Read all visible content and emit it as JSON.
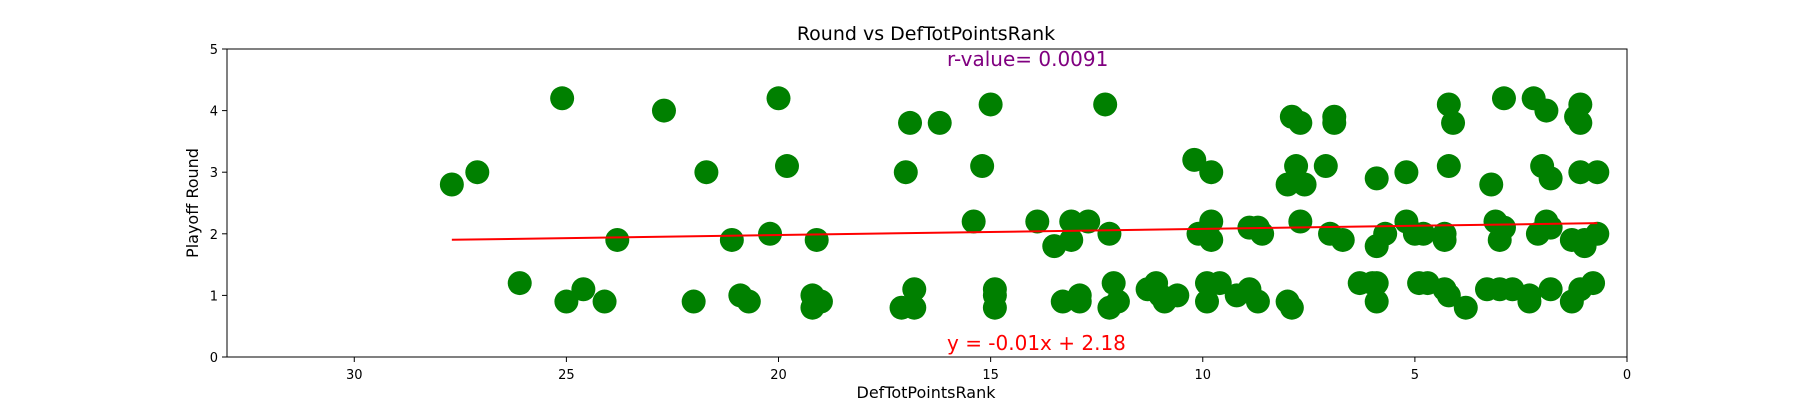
{
  "chart_data": {
    "type": "scatter",
    "title": "Round vs DefTotPointsRank",
    "xlabel": "DefTotPointsRank",
    "ylabel": "Playoff Round",
    "xlim": [
      33,
      0
    ],
    "ylim": [
      0,
      5
    ],
    "x_inverted": true,
    "xticks": [
      30,
      25,
      20,
      15,
      10,
      5,
      0
    ],
    "yticks": [
      0,
      1,
      2,
      3,
      4,
      5
    ],
    "grid": false,
    "colors": {
      "points": "#008000",
      "fit_line": "#ff0000",
      "r_value": "#800080",
      "equation": "#ff0000"
    },
    "annotations": {
      "r_value": "r-value= 0.0091",
      "equation": "y = -0.01x + 2.18"
    },
    "fit_line": {
      "slope": -0.01,
      "intercept": 2.18,
      "x_range": [
        27.7,
        0.7
      ]
    },
    "points": [
      {
        "x": 27.7,
        "y": 2.8
      },
      {
        "x": 27.1,
        "y": 3.0
      },
      {
        "x": 26.1,
        "y": 1.2
      },
      {
        "x": 25.1,
        "y": 4.2
      },
      {
        "x": 25.0,
        "y": 0.9
      },
      {
        "x": 24.6,
        "y": 1.1
      },
      {
        "x": 24.1,
        "y": 0.9
      },
      {
        "x": 23.8,
        "y": 1.9
      },
      {
        "x": 22.7,
        "y": 4.0
      },
      {
        "x": 22.0,
        "y": 0.9
      },
      {
        "x": 21.7,
        "y": 3.0
      },
      {
        "x": 21.1,
        "y": 1.9
      },
      {
        "x": 20.9,
        "y": 1.0
      },
      {
        "x": 20.7,
        "y": 0.9
      },
      {
        "x": 20.2,
        "y": 2.0
      },
      {
        "x": 20.0,
        "y": 4.2
      },
      {
        "x": 19.8,
        "y": 3.1
      },
      {
        "x": 19.2,
        "y": 1.0
      },
      {
        "x": 19.2,
        "y": 0.8
      },
      {
        "x": 19.1,
        "y": 1.9
      },
      {
        "x": 19.0,
        "y": 0.9
      },
      {
        "x": 17.1,
        "y": 0.8
      },
      {
        "x": 17.0,
        "y": 3.0
      },
      {
        "x": 16.9,
        "y": 3.8
      },
      {
        "x": 16.8,
        "y": 1.1
      },
      {
        "x": 16.8,
        "y": 0.8
      },
      {
        "x": 16.2,
        "y": 3.8
      },
      {
        "x": 15.2,
        "y": 3.1
      },
      {
        "x": 15.0,
        "y": 4.1
      },
      {
        "x": 15.4,
        "y": 2.2
      },
      {
        "x": 14.9,
        "y": 1.1
      },
      {
        "x": 14.9,
        "y": 0.8
      },
      {
        "x": 14.9,
        "y": 1.0
      },
      {
        "x": 13.9,
        "y": 2.2
      },
      {
        "x": 13.5,
        "y": 1.8
      },
      {
        "x": 13.3,
        "y": 0.9
      },
      {
        "x": 12.9,
        "y": 1.0
      },
      {
        "x": 13.1,
        "y": 2.2
      },
      {
        "x": 13.1,
        "y": 1.9
      },
      {
        "x": 12.9,
        "y": 0.9
      },
      {
        "x": 12.7,
        "y": 2.2
      },
      {
        "x": 12.3,
        "y": 4.1
      },
      {
        "x": 12.2,
        "y": 2.0
      },
      {
        "x": 12.2,
        "y": 0.8
      },
      {
        "x": 12.1,
        "y": 1.2
      },
      {
        "x": 12.0,
        "y": 0.9
      },
      {
        "x": 11.3,
        "y": 1.1
      },
      {
        "x": 11.1,
        "y": 1.2
      },
      {
        "x": 11.0,
        "y": 1.0
      },
      {
        "x": 10.9,
        "y": 0.9
      },
      {
        "x": 10.6,
        "y": 1.0
      },
      {
        "x": 10.2,
        "y": 3.2
      },
      {
        "x": 10.1,
        "y": 2.0
      },
      {
        "x": 9.9,
        "y": 0.9
      },
      {
        "x": 9.9,
        "y": 1.2
      },
      {
        "x": 9.8,
        "y": 3.0
      },
      {
        "x": 9.8,
        "y": 2.2
      },
      {
        "x": 9.8,
        "y": 1.9
      },
      {
        "x": 9.6,
        "y": 1.2
      },
      {
        "x": 9.2,
        "y": 1.0
      },
      {
        "x": 8.9,
        "y": 2.1
      },
      {
        "x": 8.9,
        "y": 1.1
      },
      {
        "x": 8.7,
        "y": 2.1
      },
      {
        "x": 8.7,
        "y": 0.9
      },
      {
        "x": 8.6,
        "y": 2.0
      },
      {
        "x": 8.0,
        "y": 0.9
      },
      {
        "x": 8.0,
        "y": 2.8
      },
      {
        "x": 7.9,
        "y": 3.9
      },
      {
        "x": 7.9,
        "y": 0.8
      },
      {
        "x": 7.8,
        "y": 3.1
      },
      {
        "x": 7.7,
        "y": 3.8
      },
      {
        "x": 7.7,
        "y": 2.2
      },
      {
        "x": 7.6,
        "y": 2.8
      },
      {
        "x": 7.1,
        "y": 3.1
      },
      {
        "x": 7.0,
        "y": 2.0
      },
      {
        "x": 6.9,
        "y": 3.9
      },
      {
        "x": 6.9,
        "y": 3.8
      },
      {
        "x": 6.7,
        "y": 1.9
      },
      {
        "x": 6.3,
        "y": 1.2
      },
      {
        "x": 6.0,
        "y": 1.2
      },
      {
        "x": 5.9,
        "y": 2.9
      },
      {
        "x": 5.9,
        "y": 1.8
      },
      {
        "x": 5.9,
        "y": 1.2
      },
      {
        "x": 5.9,
        "y": 0.9
      },
      {
        "x": 5.7,
        "y": 2.0
      },
      {
        "x": 5.2,
        "y": 3.0
      },
      {
        "x": 5.2,
        "y": 2.2
      },
      {
        "x": 5.0,
        "y": 2.0
      },
      {
        "x": 4.9,
        "y": 1.2
      },
      {
        "x": 4.8,
        "y": 2.0
      },
      {
        "x": 4.7,
        "y": 1.2
      },
      {
        "x": 4.3,
        "y": 2.0
      },
      {
        "x": 4.3,
        "y": 1.9
      },
      {
        "x": 4.3,
        "y": 1.1
      },
      {
        "x": 4.2,
        "y": 4.1
      },
      {
        "x": 4.2,
        "y": 3.1
      },
      {
        "x": 4.2,
        "y": 1.0
      },
      {
        "x": 4.1,
        "y": 3.8
      },
      {
        "x": 3.8,
        "y": 0.8
      },
      {
        "x": 3.3,
        "y": 1.1
      },
      {
        "x": 3.2,
        "y": 2.8
      },
      {
        "x": 3.1,
        "y": 2.2
      },
      {
        "x": 3.0,
        "y": 1.9
      },
      {
        "x": 3.0,
        "y": 1.1
      },
      {
        "x": 2.9,
        "y": 4.2
      },
      {
        "x": 2.9,
        "y": 2.1
      },
      {
        "x": 2.7,
        "y": 1.1
      },
      {
        "x": 2.3,
        "y": 1.0
      },
      {
        "x": 2.3,
        "y": 0.9
      },
      {
        "x": 2.2,
        "y": 4.2
      },
      {
        "x": 2.1,
        "y": 2.0
      },
      {
        "x": 2.0,
        "y": 3.1
      },
      {
        "x": 1.9,
        "y": 2.2
      },
      {
        "x": 1.9,
        "y": 4.0
      },
      {
        "x": 1.8,
        "y": 2.9
      },
      {
        "x": 1.8,
        "y": 2.1
      },
      {
        "x": 1.8,
        "y": 1.1
      },
      {
        "x": 1.3,
        "y": 1.9
      },
      {
        "x": 1.3,
        "y": 0.9
      },
      {
        "x": 1.2,
        "y": 3.9
      },
      {
        "x": 1.1,
        "y": 4.1
      },
      {
        "x": 1.1,
        "y": 3.8
      },
      {
        "x": 1.1,
        "y": 3.0
      },
      {
        "x": 1.1,
        "y": 1.1
      },
      {
        "x": 1.0,
        "y": 1.8
      },
      {
        "x": 1.0,
        "y": 1.9
      },
      {
        "x": 0.8,
        "y": 1.2
      },
      {
        "x": 0.7,
        "y": 3.0
      },
      {
        "x": 0.7,
        "y": 2.0
      }
    ]
  }
}
